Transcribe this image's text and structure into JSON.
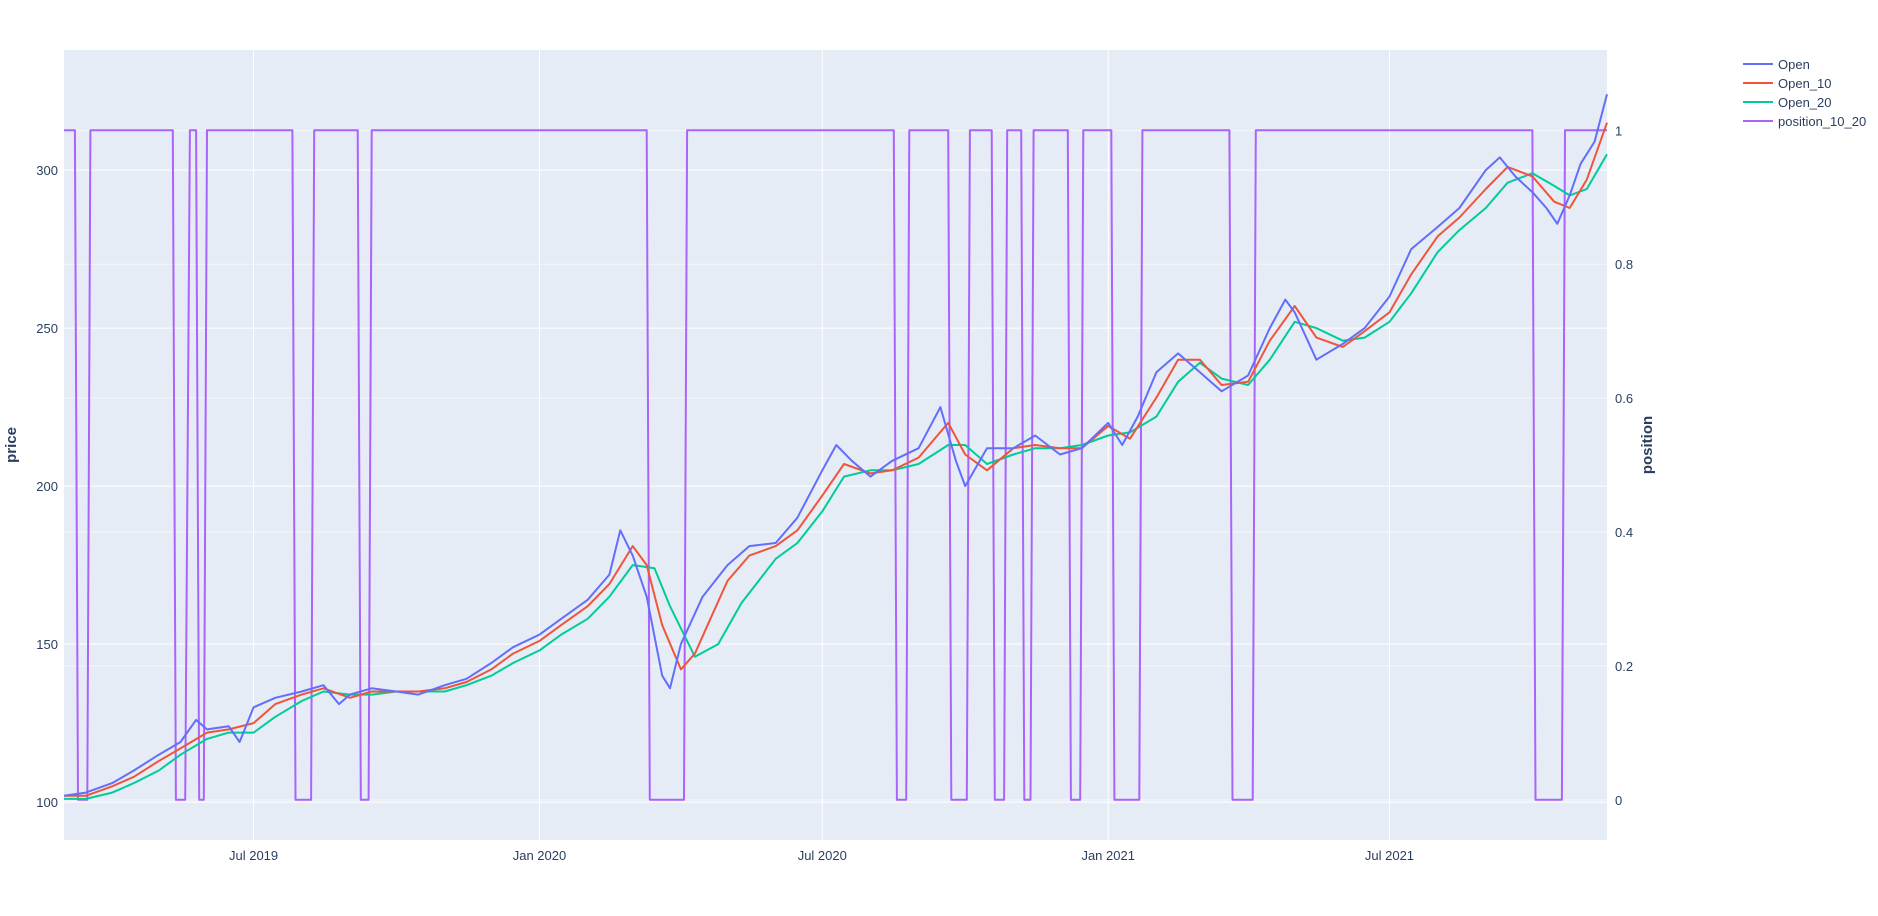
{
  "chart_data": {
    "type": "line",
    "title": "",
    "xlabel": "",
    "ylabel": "price",
    "y2label": "position",
    "xlim": [
      "2019-03-01",
      "2021-11-18"
    ],
    "ylim": [
      88,
      338
    ],
    "y2lim": [
      -0.06,
      1.12
    ],
    "x_tick_labels": [
      "Jul 2019",
      "Jan 2020",
      "Jul 2020",
      "Jan 2021",
      "Jul 2021"
    ],
    "x_tick_dates": [
      "2019-07-01",
      "2020-01-01",
      "2020-07-01",
      "2021-01-01",
      "2021-07-01"
    ],
    "y_ticks": [
      100,
      150,
      200,
      250,
      300
    ],
    "y_tick_labels": [
      "100",
      "150",
      "200",
      "250",
      "300"
    ],
    "y2_ticks": [
      0,
      0.2,
      0.4,
      0.6,
      0.8,
      1
    ],
    "y2_tick_labels": [
      "0",
      "0.2",
      "0.4",
      "0.6",
      "0.8",
      "1"
    ],
    "grid": true,
    "legend": "top-right outside",
    "colors": {
      "plot_bg": "#e5ecf6",
      "Open": "#636efa",
      "Open_10": "#ef553b",
      "Open_20": "#00cc96",
      "position_10_20": "#ab63fa"
    },
    "series": [
      {
        "name": "Open",
        "axis": "y",
        "points": [
          [
            "2019-03-01",
            102
          ],
          [
            "2019-03-15",
            103
          ],
          [
            "2019-04-01",
            106
          ],
          [
            "2019-04-15",
            110
          ],
          [
            "2019-05-01",
            115
          ],
          [
            "2019-05-15",
            119
          ],
          [
            "2019-05-25",
            126
          ],
          [
            "2019-06-01",
            123
          ],
          [
            "2019-06-15",
            124
          ],
          [
            "2019-06-22",
            119
          ],
          [
            "2019-07-01",
            130
          ],
          [
            "2019-07-15",
            133
          ],
          [
            "2019-08-01",
            135
          ],
          [
            "2019-08-15",
            137
          ],
          [
            "2019-08-25",
            131
          ],
          [
            "2019-09-01",
            134
          ],
          [
            "2019-09-15",
            136
          ],
          [
            "2019-10-01",
            135
          ],
          [
            "2019-10-15",
            134
          ],
          [
            "2019-11-01",
            137
          ],
          [
            "2019-11-15",
            139
          ],
          [
            "2019-12-01",
            144
          ],
          [
            "2019-12-15",
            149
          ],
          [
            "2020-01-01",
            153
          ],
          [
            "2020-01-15",
            158
          ],
          [
            "2020-02-01",
            164
          ],
          [
            "2020-02-15",
            172
          ],
          [
            "2020-02-22",
            186
          ],
          [
            "2020-03-01",
            178
          ],
          [
            "2020-03-10",
            165
          ],
          [
            "2020-03-20",
            140
          ],
          [
            "2020-03-25",
            136
          ],
          [
            "2020-04-01",
            150
          ],
          [
            "2020-04-15",
            165
          ],
          [
            "2020-05-01",
            175
          ],
          [
            "2020-05-15",
            181
          ],
          [
            "2020-06-01",
            182
          ],
          [
            "2020-06-15",
            190
          ],
          [
            "2020-07-01",
            205
          ],
          [
            "2020-07-10",
            213
          ],
          [
            "2020-07-20",
            208
          ],
          [
            "2020-08-01",
            203
          ],
          [
            "2020-08-15",
            208
          ],
          [
            "2020-09-01",
            212
          ],
          [
            "2020-09-15",
            225
          ],
          [
            "2020-09-25",
            208
          ],
          [
            "2020-10-01",
            200
          ],
          [
            "2020-10-15",
            212
          ],
          [
            "2020-11-01",
            212
          ],
          [
            "2020-11-15",
            216
          ],
          [
            "2020-12-01",
            210
          ],
          [
            "2020-12-15",
            212
          ],
          [
            "2021-01-01",
            220
          ],
          [
            "2021-01-10",
            213
          ],
          [
            "2021-01-20",
            222
          ],
          [
            "2021-02-01",
            236
          ],
          [
            "2021-02-15",
            242
          ],
          [
            "2021-03-01",
            236
          ],
          [
            "2021-03-15",
            230
          ],
          [
            "2021-04-01",
            235
          ],
          [
            "2021-04-15",
            250
          ],
          [
            "2021-04-25",
            259
          ],
          [
            "2021-05-01",
            255
          ],
          [
            "2021-05-15",
            240
          ],
          [
            "2021-06-01",
            245
          ],
          [
            "2021-06-15",
            250
          ],
          [
            "2021-07-01",
            260
          ],
          [
            "2021-07-15",
            275
          ],
          [
            "2021-08-01",
            282
          ],
          [
            "2021-08-15",
            288
          ],
          [
            "2021-09-01",
            300
          ],
          [
            "2021-09-10",
            304
          ],
          [
            "2021-09-20",
            298
          ],
          [
            "2021-10-01",
            293
          ],
          [
            "2021-10-10",
            288
          ],
          [
            "2021-10-17",
            283
          ],
          [
            "2021-10-25",
            292
          ],
          [
            "2021-11-01",
            302
          ],
          [
            "2021-11-10",
            309
          ],
          [
            "2021-11-18",
            324
          ]
        ]
      },
      {
        "name": "Open_10",
        "axis": "y",
        "points": [
          [
            "2019-03-01",
            102
          ],
          [
            "2019-03-15",
            102
          ],
          [
            "2019-04-01",
            105
          ],
          [
            "2019-04-15",
            108
          ],
          [
            "2019-05-01",
            113
          ],
          [
            "2019-05-15",
            117
          ],
          [
            "2019-06-01",
            122
          ],
          [
            "2019-06-15",
            123
          ],
          [
            "2019-07-01",
            125
          ],
          [
            "2019-07-15",
            131
          ],
          [
            "2019-08-01",
            134
          ],
          [
            "2019-08-15",
            136
          ],
          [
            "2019-09-01",
            133
          ],
          [
            "2019-09-15",
            135
          ],
          [
            "2019-10-01",
            135
          ],
          [
            "2019-10-15",
            135
          ],
          [
            "2019-11-01",
            136
          ],
          [
            "2019-11-15",
            138
          ],
          [
            "2019-12-01",
            142
          ],
          [
            "2019-12-15",
            147
          ],
          [
            "2020-01-01",
            151
          ],
          [
            "2020-01-15",
            156
          ],
          [
            "2020-02-01",
            162
          ],
          [
            "2020-02-15",
            169
          ],
          [
            "2020-03-01",
            181
          ],
          [
            "2020-03-10",
            175
          ],
          [
            "2020-03-20",
            156
          ],
          [
            "2020-04-01",
            142
          ],
          [
            "2020-04-10",
            147
          ],
          [
            "2020-04-20",
            158
          ],
          [
            "2020-05-01",
            170
          ],
          [
            "2020-05-15",
            178
          ],
          [
            "2020-06-01",
            181
          ],
          [
            "2020-06-15",
            186
          ],
          [
            "2020-07-01",
            197
          ],
          [
            "2020-07-15",
            207
          ],
          [
            "2020-08-01",
            204
          ],
          [
            "2020-08-15",
            205
          ],
          [
            "2020-09-01",
            209
          ],
          [
            "2020-09-20",
            220
          ],
          [
            "2020-10-01",
            210
          ],
          [
            "2020-10-15",
            205
          ],
          [
            "2020-11-01",
            212
          ],
          [
            "2020-11-15",
            213
          ],
          [
            "2020-12-01",
            212
          ],
          [
            "2020-12-15",
            212
          ],
          [
            "2021-01-01",
            219
          ],
          [
            "2021-01-15",
            215
          ],
          [
            "2021-02-01",
            228
          ],
          [
            "2021-02-15",
            240
          ],
          [
            "2021-03-01",
            240
          ],
          [
            "2021-03-15",
            232
          ],
          [
            "2021-04-01",
            233
          ],
          [
            "2021-04-15",
            246
          ],
          [
            "2021-05-01",
            257
          ],
          [
            "2021-05-15",
            247
          ],
          [
            "2021-06-01",
            244
          ],
          [
            "2021-06-15",
            249
          ],
          [
            "2021-07-01",
            255
          ],
          [
            "2021-07-15",
            267
          ],
          [
            "2021-08-01",
            279
          ],
          [
            "2021-08-15",
            285
          ],
          [
            "2021-09-01",
            294
          ],
          [
            "2021-09-15",
            301
          ],
          [
            "2021-10-01",
            298
          ],
          [
            "2021-10-15",
            290
          ],
          [
            "2021-10-25",
            288
          ],
          [
            "2021-11-05",
            297
          ],
          [
            "2021-11-18",
            315
          ]
        ]
      },
      {
        "name": "Open_20",
        "axis": "y",
        "points": [
          [
            "2019-03-01",
            101
          ],
          [
            "2019-03-15",
            101
          ],
          [
            "2019-04-01",
            103
          ],
          [
            "2019-04-15",
            106
          ],
          [
            "2019-05-01",
            110
          ],
          [
            "2019-05-15",
            115
          ],
          [
            "2019-06-01",
            120
          ],
          [
            "2019-06-15",
            122
          ],
          [
            "2019-07-01",
            122
          ],
          [
            "2019-07-15",
            127
          ],
          [
            "2019-08-01",
            132
          ],
          [
            "2019-08-15",
            135
          ],
          [
            "2019-09-01",
            134
          ],
          [
            "2019-09-15",
            134
          ],
          [
            "2019-10-01",
            135
          ],
          [
            "2019-10-15",
            135
          ],
          [
            "2019-11-01",
            135
          ],
          [
            "2019-11-15",
            137
          ],
          [
            "2019-12-01",
            140
          ],
          [
            "2019-12-15",
            144
          ],
          [
            "2020-01-01",
            148
          ],
          [
            "2020-01-15",
            153
          ],
          [
            "2020-02-01",
            158
          ],
          [
            "2020-02-15",
            165
          ],
          [
            "2020-03-01",
            175
          ],
          [
            "2020-03-15",
            174
          ],
          [
            "2020-03-25",
            162
          ],
          [
            "2020-04-10",
            146
          ],
          [
            "2020-04-25",
            150
          ],
          [
            "2020-05-10",
            163
          ],
          [
            "2020-06-01",
            177
          ],
          [
            "2020-06-15",
            182
          ],
          [
            "2020-07-01",
            192
          ],
          [
            "2020-07-15",
            203
          ],
          [
            "2020-08-01",
            205
          ],
          [
            "2020-08-15",
            205
          ],
          [
            "2020-09-01",
            207
          ],
          [
            "2020-09-20",
            213
          ],
          [
            "2020-10-01",
            213
          ],
          [
            "2020-10-15",
            207
          ],
          [
            "2020-11-01",
            210
          ],
          [
            "2020-11-15",
            212
          ],
          [
            "2020-12-01",
            212
          ],
          [
            "2020-12-15",
            213
          ],
          [
            "2021-01-01",
            216
          ],
          [
            "2021-01-15",
            217
          ],
          [
            "2021-02-01",
            222
          ],
          [
            "2021-02-15",
            233
          ],
          [
            "2021-03-01",
            239
          ],
          [
            "2021-03-15",
            234
          ],
          [
            "2021-04-01",
            232
          ],
          [
            "2021-04-15",
            240
          ],
          [
            "2021-05-01",
            252
          ],
          [
            "2021-05-15",
            250
          ],
          [
            "2021-06-01",
            246
          ],
          [
            "2021-06-15",
            247
          ],
          [
            "2021-07-01",
            252
          ],
          [
            "2021-07-15",
            261
          ],
          [
            "2021-08-01",
            274
          ],
          [
            "2021-08-15",
            281
          ],
          [
            "2021-09-01",
            288
          ],
          [
            "2021-09-15",
            296
          ],
          [
            "2021-10-01",
            299
          ],
          [
            "2021-10-15",
            295
          ],
          [
            "2021-10-25",
            292
          ],
          [
            "2021-11-05",
            294
          ],
          [
            "2021-11-18",
            305
          ]
        ]
      },
      {
        "name": "position_10_20",
        "axis": "y2",
        "step": true,
        "points": [
          [
            "2019-03-01",
            1
          ],
          [
            "2019-03-08",
            1
          ],
          [
            "2019-03-10",
            0
          ],
          [
            "2019-03-16",
            0
          ],
          [
            "2019-03-18",
            1
          ],
          [
            "2019-05-10",
            1
          ],
          [
            "2019-05-12",
            0
          ],
          [
            "2019-05-18",
            0
          ],
          [
            "2019-05-21",
            1
          ],
          [
            "2019-05-25",
            1
          ],
          [
            "2019-05-27",
            0
          ],
          [
            "2019-05-30",
            0
          ],
          [
            "2019-06-01",
            1
          ],
          [
            "2019-07-26",
            1
          ],
          [
            "2019-07-28",
            0
          ],
          [
            "2019-08-07",
            0
          ],
          [
            "2019-08-09",
            1
          ],
          [
            "2019-09-06",
            1
          ],
          [
            "2019-09-08",
            0
          ],
          [
            "2019-09-13",
            0
          ],
          [
            "2019-09-15",
            1
          ],
          [
            "2020-03-10",
            1
          ],
          [
            "2020-03-12",
            0
          ],
          [
            "2020-04-03",
            0
          ],
          [
            "2020-04-05",
            1
          ],
          [
            "2020-08-16",
            1
          ],
          [
            "2020-08-18",
            0
          ],
          [
            "2020-08-24",
            0
          ],
          [
            "2020-08-26",
            1
          ],
          [
            "2020-09-20",
            1
          ],
          [
            "2020-09-22",
            0
          ],
          [
            "2020-10-02",
            0
          ],
          [
            "2020-10-04",
            1
          ],
          [
            "2020-10-18",
            1
          ],
          [
            "2020-10-20",
            0
          ],
          [
            "2020-10-26",
            0
          ],
          [
            "2020-10-28",
            1
          ],
          [
            "2020-11-06",
            1
          ],
          [
            "2020-11-08",
            0
          ],
          [
            "2020-11-12",
            0
          ],
          [
            "2020-11-14",
            1
          ],
          [
            "2020-12-06",
            1
          ],
          [
            "2020-12-08",
            0
          ],
          [
            "2020-12-14",
            0
          ],
          [
            "2020-12-16",
            1
          ],
          [
            "2021-01-03",
            1
          ],
          [
            "2021-01-05",
            0
          ],
          [
            "2021-01-21",
            0
          ],
          [
            "2021-01-23",
            1
          ],
          [
            "2021-03-20",
            1
          ],
          [
            "2021-03-22",
            0
          ],
          [
            "2021-04-04",
            0
          ],
          [
            "2021-04-06",
            1
          ],
          [
            "2021-10-01",
            1
          ],
          [
            "2021-10-03",
            0
          ],
          [
            "2021-10-20",
            0
          ],
          [
            "2021-10-22",
            1
          ],
          [
            "2021-11-18",
            1
          ]
        ]
      }
    ]
  },
  "legend": {
    "items": [
      "Open",
      "Open_10",
      "Open_20",
      "position_10_20"
    ]
  }
}
